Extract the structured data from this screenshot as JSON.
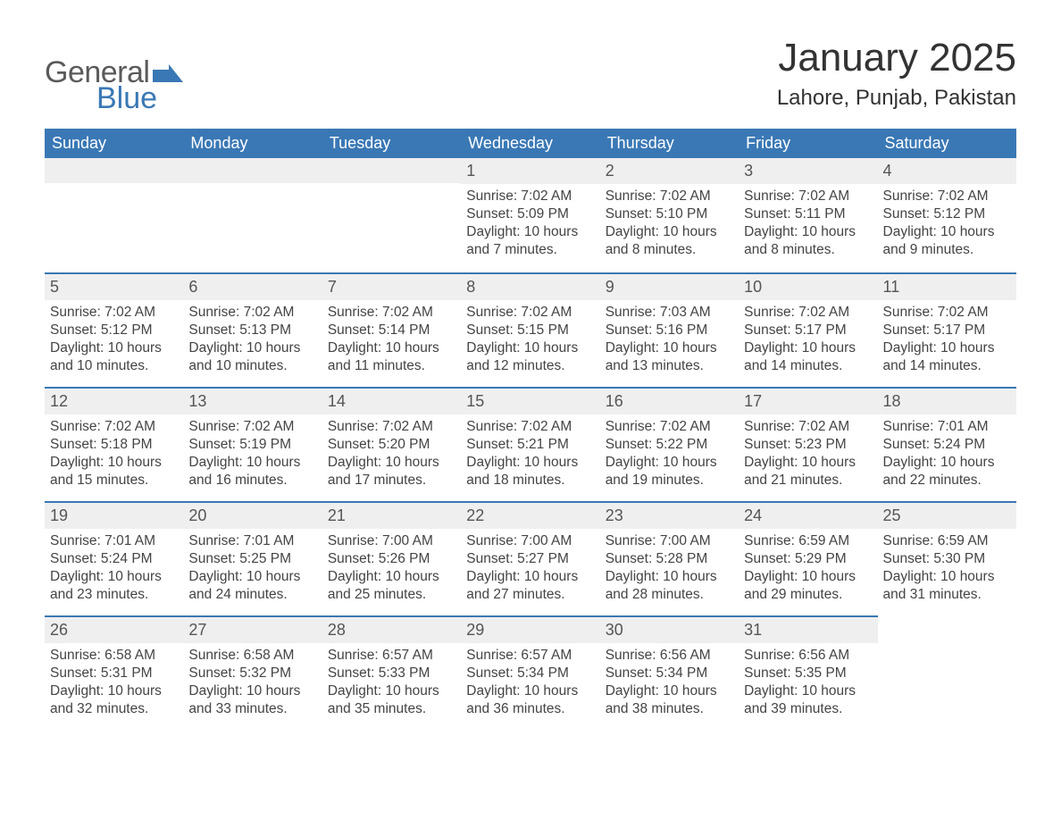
{
  "logo": {
    "general": "General",
    "blue": "Blue",
    "flag_color": "#3a78b5"
  },
  "header": {
    "title": "January 2025",
    "location": "Lahore, Punjab, Pakistan"
  },
  "columns": [
    "Sunday",
    "Monday",
    "Tuesday",
    "Wednesday",
    "Thursday",
    "Friday",
    "Saturday"
  ],
  "colors": {
    "header_bg": "#3a78b5",
    "header_text": "#ffffff",
    "daynum_bg": "#efefef",
    "week_border": "#3a78b5",
    "text": "#444444"
  },
  "weeks": [
    [
      null,
      null,
      null,
      {
        "day": "1",
        "sunrise": "Sunrise: 7:02 AM",
        "sunset": "Sunset: 5:09 PM",
        "daylight": "Daylight: 10 hours and 7 minutes."
      },
      {
        "day": "2",
        "sunrise": "Sunrise: 7:02 AM",
        "sunset": "Sunset: 5:10 PM",
        "daylight": "Daylight: 10 hours and 8 minutes."
      },
      {
        "day": "3",
        "sunrise": "Sunrise: 7:02 AM",
        "sunset": "Sunset: 5:11 PM",
        "daylight": "Daylight: 10 hours and 8 minutes."
      },
      {
        "day": "4",
        "sunrise": "Sunrise: 7:02 AM",
        "sunset": "Sunset: 5:12 PM",
        "daylight": "Daylight: 10 hours and 9 minutes."
      }
    ],
    [
      {
        "day": "5",
        "sunrise": "Sunrise: 7:02 AM",
        "sunset": "Sunset: 5:12 PM",
        "daylight": "Daylight: 10 hours and 10 minutes."
      },
      {
        "day": "6",
        "sunrise": "Sunrise: 7:02 AM",
        "sunset": "Sunset: 5:13 PM",
        "daylight": "Daylight: 10 hours and 10 minutes."
      },
      {
        "day": "7",
        "sunrise": "Sunrise: 7:02 AM",
        "sunset": "Sunset: 5:14 PM",
        "daylight": "Daylight: 10 hours and 11 minutes."
      },
      {
        "day": "8",
        "sunrise": "Sunrise: 7:02 AM",
        "sunset": "Sunset: 5:15 PM",
        "daylight": "Daylight: 10 hours and 12 minutes."
      },
      {
        "day": "9",
        "sunrise": "Sunrise: 7:03 AM",
        "sunset": "Sunset: 5:16 PM",
        "daylight": "Daylight: 10 hours and 13 minutes."
      },
      {
        "day": "10",
        "sunrise": "Sunrise: 7:02 AM",
        "sunset": "Sunset: 5:17 PM",
        "daylight": "Daylight: 10 hours and 14 minutes."
      },
      {
        "day": "11",
        "sunrise": "Sunrise: 7:02 AM",
        "sunset": "Sunset: 5:17 PM",
        "daylight": "Daylight: 10 hours and 14 minutes."
      }
    ],
    [
      {
        "day": "12",
        "sunrise": "Sunrise: 7:02 AM",
        "sunset": "Sunset: 5:18 PM",
        "daylight": "Daylight: 10 hours and 15 minutes."
      },
      {
        "day": "13",
        "sunrise": "Sunrise: 7:02 AM",
        "sunset": "Sunset: 5:19 PM",
        "daylight": "Daylight: 10 hours and 16 minutes."
      },
      {
        "day": "14",
        "sunrise": "Sunrise: 7:02 AM",
        "sunset": "Sunset: 5:20 PM",
        "daylight": "Daylight: 10 hours and 17 minutes."
      },
      {
        "day": "15",
        "sunrise": "Sunrise: 7:02 AM",
        "sunset": "Sunset: 5:21 PM",
        "daylight": "Daylight: 10 hours and 18 minutes."
      },
      {
        "day": "16",
        "sunrise": "Sunrise: 7:02 AM",
        "sunset": "Sunset: 5:22 PM",
        "daylight": "Daylight: 10 hours and 19 minutes."
      },
      {
        "day": "17",
        "sunrise": "Sunrise: 7:02 AM",
        "sunset": "Sunset: 5:23 PM",
        "daylight": "Daylight: 10 hours and 21 minutes."
      },
      {
        "day": "18",
        "sunrise": "Sunrise: 7:01 AM",
        "sunset": "Sunset: 5:24 PM",
        "daylight": "Daylight: 10 hours and 22 minutes."
      }
    ],
    [
      {
        "day": "19",
        "sunrise": "Sunrise: 7:01 AM",
        "sunset": "Sunset: 5:24 PM",
        "daylight": "Daylight: 10 hours and 23 minutes."
      },
      {
        "day": "20",
        "sunrise": "Sunrise: 7:01 AM",
        "sunset": "Sunset: 5:25 PM",
        "daylight": "Daylight: 10 hours and 24 minutes."
      },
      {
        "day": "21",
        "sunrise": "Sunrise: 7:00 AM",
        "sunset": "Sunset: 5:26 PM",
        "daylight": "Daylight: 10 hours and 25 minutes."
      },
      {
        "day": "22",
        "sunrise": "Sunrise: 7:00 AM",
        "sunset": "Sunset: 5:27 PM",
        "daylight": "Daylight: 10 hours and 27 minutes."
      },
      {
        "day": "23",
        "sunrise": "Sunrise: 7:00 AM",
        "sunset": "Sunset: 5:28 PM",
        "daylight": "Daylight: 10 hours and 28 minutes."
      },
      {
        "day": "24",
        "sunrise": "Sunrise: 6:59 AM",
        "sunset": "Sunset: 5:29 PM",
        "daylight": "Daylight: 10 hours and 29 minutes."
      },
      {
        "day": "25",
        "sunrise": "Sunrise: 6:59 AM",
        "sunset": "Sunset: 5:30 PM",
        "daylight": "Daylight: 10 hours and 31 minutes."
      }
    ],
    [
      {
        "day": "26",
        "sunrise": "Sunrise: 6:58 AM",
        "sunset": "Sunset: 5:31 PM",
        "daylight": "Daylight: 10 hours and 32 minutes."
      },
      {
        "day": "27",
        "sunrise": "Sunrise: 6:58 AM",
        "sunset": "Sunset: 5:32 PM",
        "daylight": "Daylight: 10 hours and 33 minutes."
      },
      {
        "day": "28",
        "sunrise": "Sunrise: 6:57 AM",
        "sunset": "Sunset: 5:33 PM",
        "daylight": "Daylight: 10 hours and 35 minutes."
      },
      {
        "day": "29",
        "sunrise": "Sunrise: 6:57 AM",
        "sunset": "Sunset: 5:34 PM",
        "daylight": "Daylight: 10 hours and 36 minutes."
      },
      {
        "day": "30",
        "sunrise": "Sunrise: 6:56 AM",
        "sunset": "Sunset: 5:34 PM",
        "daylight": "Daylight: 10 hours and 38 minutes."
      },
      {
        "day": "31",
        "sunrise": "Sunrise: 6:56 AM",
        "sunset": "Sunset: 5:35 PM",
        "daylight": "Daylight: 10 hours and 39 minutes."
      },
      null
    ]
  ]
}
